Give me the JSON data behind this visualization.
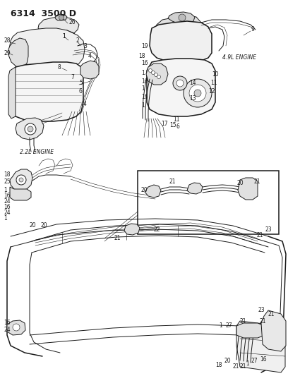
{
  "title": "6314  3500 D",
  "bg_color": "#ffffff",
  "line_color": "#1a1a1a",
  "text_color": "#1a1a1a",
  "label_fontsize": 5.5,
  "title_fontsize": 9,
  "engine_label_22l": "2.2L ENGINE",
  "engine_label_49l": "4.9L ENGINE",
  "figsize": [
    4.08,
    5.33
  ],
  "dpi": 100
}
